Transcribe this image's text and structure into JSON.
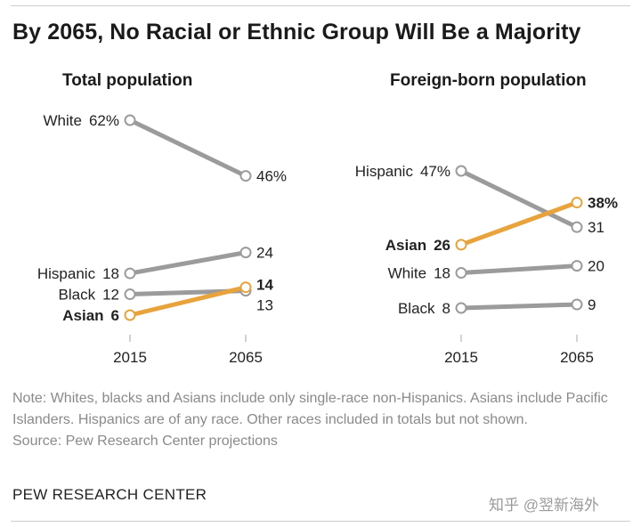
{
  "title": "By 2065, No Racial or Ethnic Group Will Be a Majority",
  "colors": {
    "gray": "#9b9b9b",
    "orange": "#e8a33d",
    "axis": "#b5b5b5"
  },
  "chart_data": [
    {
      "type": "line",
      "title": "Total population",
      "x": [
        "2015",
        "2065"
      ],
      "series": [
        {
          "name": "White",
          "values": [
            62,
            46
          ],
          "labels": [
            "62%",
            "46%"
          ],
          "highlight": false
        },
        {
          "name": "Hispanic",
          "values": [
            18,
            24
          ],
          "labels": [
            "18",
            "24"
          ],
          "highlight": false
        },
        {
          "name": "Black",
          "values": [
            12,
            13
          ],
          "labels": [
            "12",
            "13"
          ],
          "highlight": false
        },
        {
          "name": "Asian",
          "values": [
            6,
            14
          ],
          "labels": [
            "6",
            "14"
          ],
          "highlight": true
        }
      ]
    },
    {
      "type": "line",
      "title": "Foreign-born population",
      "x": [
        "2015",
        "2065"
      ],
      "series": [
        {
          "name": "Hispanic",
          "values": [
            47,
            31
          ],
          "labels": [
            "47%",
            "31"
          ],
          "highlight": false
        },
        {
          "name": "Asian",
          "values": [
            26,
            38
          ],
          "labels": [
            "26",
            "38%"
          ],
          "highlight": true
        },
        {
          "name": "White",
          "values": [
            18,
            20
          ],
          "labels": [
            "18",
            "20"
          ],
          "highlight": false
        },
        {
          "name": "Black",
          "values": [
            8,
            9
          ],
          "labels": [
            "8",
            "9"
          ],
          "highlight": false
        }
      ]
    }
  ],
  "note": {
    "line1": "Note: Whites, blacks and Asians include only single-race non-Hispanics. Asians include Pacific Islanders. Hispanics are of any race. Other races included in totals but not shown.",
    "source": "Source: Pew Research Center projections"
  },
  "org": "PEW RESEARCH CENTER",
  "watermark": "知乎 @翌新海外"
}
